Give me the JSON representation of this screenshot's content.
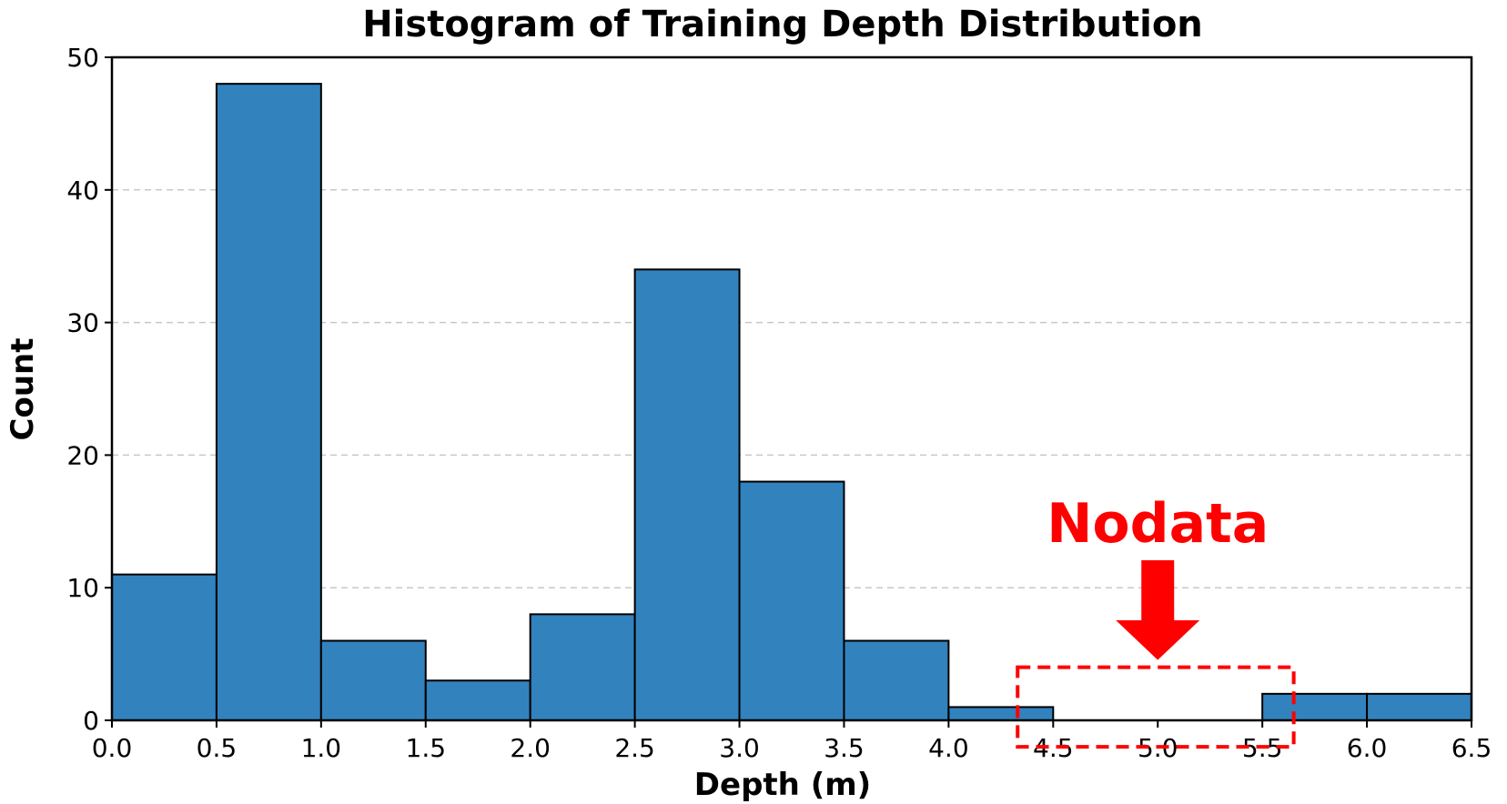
{
  "chart_data": {
    "type": "bar",
    "title": "Histogram of Training Depth Distribution",
    "xlabel": "Depth (m)",
    "ylabel": "Count",
    "xlim": [
      0.0,
      6.5
    ],
    "ylim": [
      0,
      50
    ],
    "bar_color": "#3282bd",
    "grid": "y-dashed",
    "x_ticks": [
      "0.0",
      "0.5",
      "1.0",
      "1.5",
      "2.0",
      "2.5",
      "3.0",
      "3.5",
      "4.0",
      "4.5",
      "5.0",
      "5.5",
      "6.0",
      "6.5"
    ],
    "y_ticks": [
      "0",
      "10",
      "20",
      "30",
      "40",
      "50"
    ],
    "bins": [
      {
        "start": 0.0,
        "end": 0.5,
        "count": 11
      },
      {
        "start": 0.5,
        "end": 1.0,
        "count": 48
      },
      {
        "start": 1.0,
        "end": 1.5,
        "count": 6
      },
      {
        "start": 1.5,
        "end": 2.0,
        "count": 3
      },
      {
        "start": 2.0,
        "end": 2.5,
        "count": 8
      },
      {
        "start": 2.5,
        "end": 3.0,
        "count": 34
      },
      {
        "start": 3.0,
        "end": 3.5,
        "count": 18
      },
      {
        "start": 3.5,
        "end": 4.0,
        "count": 6
      },
      {
        "start": 4.0,
        "end": 4.5,
        "count": 1
      },
      {
        "start": 4.5,
        "end": 5.0,
        "count": 0
      },
      {
        "start": 5.0,
        "end": 5.5,
        "count": 0
      },
      {
        "start": 5.5,
        "end": 6.0,
        "count": 2
      },
      {
        "start": 6.0,
        "end": 6.5,
        "count": 2
      }
    ],
    "annotation": {
      "text": "Nodata",
      "color": "#ff0000",
      "arrow_target_x": 5.0,
      "box_range": {
        "x": [
          4.33,
          5.65
        ],
        "y": [
          -2,
          4
        ]
      }
    }
  }
}
